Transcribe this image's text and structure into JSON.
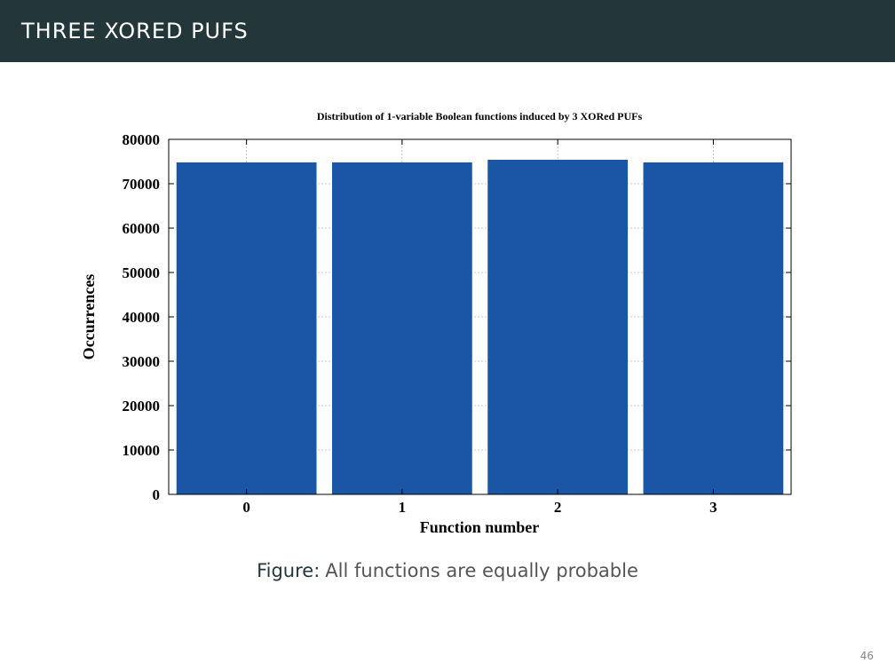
{
  "header": {
    "title": "THREE XORED PUFS"
  },
  "caption": {
    "label": "Figure:",
    "text": "All functions are equally probable"
  },
  "page_number": "46",
  "colors": {
    "bar": "#1a55a6",
    "header_bg": "#23373b"
  },
  "chart_data": {
    "type": "bar",
    "title": "Distribution of 1-variable Boolean functions induced by 3 XORed PUFs",
    "xlabel": "Function number",
    "ylabel": "Occurrences",
    "categories": [
      "0",
      "1",
      "2",
      "3"
    ],
    "values": [
      74800,
      74800,
      75400,
      74800
    ],
    "ylim": [
      0,
      80000
    ],
    "yticks": [
      "0",
      "10000",
      "20000",
      "30000",
      "40000",
      "50000",
      "60000",
      "70000",
      "80000"
    ],
    "grid": true,
    "bar_color": "#1a55a6"
  }
}
